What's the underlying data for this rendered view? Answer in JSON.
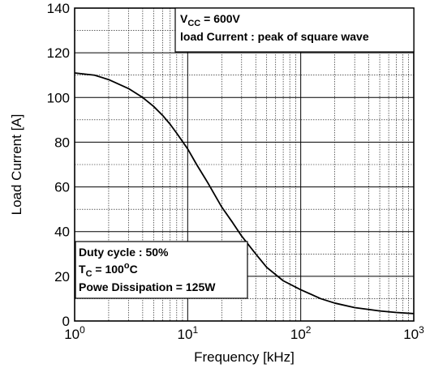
{
  "chart_data": {
    "type": "line",
    "xlabel": "Frequency [kHz]",
    "ylabel": "Load Current [A]",
    "xscale": "log",
    "xlim": [
      1,
      1000
    ],
    "ylim": [
      0,
      140
    ],
    "grid": true,
    "x_ticks": [
      {
        "base": "10",
        "exp": "0",
        "value": 1
      },
      {
        "base": "10",
        "exp": "1",
        "value": 10
      },
      {
        "base": "10",
        "exp": "2",
        "value": 100
      },
      {
        "base": "10",
        "exp": "3",
        "value": 1000
      }
    ],
    "y_ticks": [
      "0",
      "20",
      "40",
      "60",
      "80",
      "100",
      "120",
      "140"
    ],
    "series": [
      {
        "color": "#000000",
        "x": [
          1,
          1.5,
          2,
          3,
          4,
          5,
          6,
          7,
          8,
          10,
          12,
          15,
          20,
          25,
          30,
          40,
          50,
          70,
          100,
          150,
          200,
          300,
          500,
          700,
          1000
        ],
        "y": [
          111,
          110,
          108,
          104,
          100,
          96,
          92,
          88,
          84,
          77,
          70,
          62,
          51,
          44,
          38,
          30,
          24,
          18,
          14,
          10,
          8,
          6,
          4.5,
          3.8,
          3.3
        ]
      }
    ],
    "annotations": {
      "top_right": {
        "vcc_main": "V",
        "vcc_sub": "CC",
        "vcc_rest": " = 600V",
        "line2": "load Current : peak of square wave"
      },
      "bottom_left": {
        "line1": "Duty cycle : 50%",
        "tc_main": "T",
        "tc_sub": "C",
        "tc_rest": " = 100",
        "tc_sup": "o",
        "tc_unit": "C",
        "line3": "Powe Dissipation = 125W"
      }
    }
  }
}
